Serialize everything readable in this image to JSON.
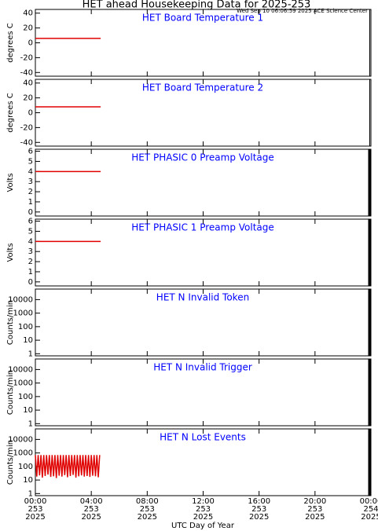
{
  "title": "HET ahead Housekeeping Data for 2025-253",
  "subtitle": "Wed Sep 10 06:06:59 2025 ACE Science Center",
  "x_axis": {
    "xlabel": "UTC Day of Year",
    "xlim": [
      0,
      24
    ],
    "xticks": [
      {
        "value": 0,
        "label": "00:00",
        "day": "253",
        "year": "2025"
      },
      {
        "value": 4,
        "label": "04:00",
        "day": "253",
        "year": "2025"
      },
      {
        "value": 8,
        "label": "08:00",
        "day": "253",
        "year": "2025"
      },
      {
        "value": 12,
        "label": "12:00",
        "day": "253",
        "year": "2025"
      },
      {
        "value": 16,
        "label": "16:00",
        "day": "253",
        "year": "2025"
      },
      {
        "value": 20,
        "label": "20:00",
        "day": "253",
        "year": "2025"
      },
      {
        "value": 24,
        "label": "00:00",
        "day": "254",
        "year": "2025"
      }
    ]
  },
  "chart_data": [
    {
      "type": "line",
      "title": "HET Board Temperature 1",
      "ylabel": "degrees C",
      "ylim": [
        -45,
        45
      ],
      "yticks": [
        -40,
        -20,
        0,
        20,
        40
      ],
      "series": [
        {
          "color": "#e00000",
          "x": [
            0,
            4.67
          ],
          "values": [
            6,
            6
          ]
        }
      ]
    },
    {
      "type": "line",
      "title": "HET Board Temperature 2",
      "ylabel": "degrees C",
      "ylim": [
        -45,
        45
      ],
      "yticks": [
        -40,
        -20,
        0,
        20,
        40
      ],
      "series": [
        {
          "color": "#e00000",
          "x": [
            0,
            4.67
          ],
          "values": [
            8,
            8
          ]
        }
      ]
    },
    {
      "type": "line",
      "title": "HET PHASIC 0 Preamp Voltage",
      "ylabel": "Volts",
      "ylim": [
        -0.4,
        6.2
      ],
      "yticks": [
        0,
        1,
        2,
        3,
        4,
        5,
        6
      ],
      "series": [
        {
          "color": "#e00000",
          "x": [
            0,
            4.67
          ],
          "values": [
            4,
            4
          ]
        }
      ]
    },
    {
      "type": "line",
      "title": "HET PHASIC 1 Preamp Voltage",
      "ylabel": "Volts",
      "ylim": [
        -0.4,
        6.2
      ],
      "yticks": [
        0,
        1,
        2,
        3,
        4,
        5,
        6
      ],
      "series": [
        {
          "color": "#e00000",
          "x": [
            0,
            4.67
          ],
          "values": [
            4,
            4
          ]
        }
      ]
    },
    {
      "type": "line",
      "title": "HET N Invalid Token",
      "ylabel": "Counts/min",
      "yscale": "log",
      "ylim": [
        0.7,
        60000
      ],
      "yticks": [
        1,
        10,
        100,
        1000,
        10000
      ],
      "series": []
    },
    {
      "type": "line",
      "title": "HET N Invalid Trigger",
      "ylabel": "Counts/min",
      "yscale": "log",
      "ylim": [
        0.7,
        60000
      ],
      "yticks": [
        1,
        10,
        100,
        1000,
        10000
      ],
      "series": []
    },
    {
      "type": "line",
      "title": "HET N Lost Events",
      "ylabel": "Counts/min",
      "yscale": "log",
      "ylim": [
        0.7,
        60000
      ],
      "yticks": [
        1,
        10,
        100,
        1000,
        10000
      ],
      "series": [
        {
          "color": "#e00000",
          "x": [
            0,
            0.1,
            0.2,
            0.3,
            0.4,
            0.5,
            0.6,
            0.7,
            0.8,
            0.9,
            1,
            1.1,
            1.2,
            1.3,
            1.4,
            1.5,
            1.6,
            1.7,
            1.8,
            1.9,
            2,
            2.1,
            2.2,
            2.3,
            2.4,
            2.5,
            2.6,
            2.7,
            2.8,
            2.9,
            3,
            3.1,
            3.2,
            3.3,
            3.4,
            3.5,
            3.6,
            3.7,
            3.8,
            3.9,
            4,
            4.1,
            4.2,
            4.3,
            4.4,
            4.5,
            4.6
          ],
          "values": [
            700,
            18,
            700,
            22,
            700,
            15,
            700,
            20,
            700,
            25,
            700,
            17,
            700,
            19,
            700,
            14,
            700,
            21,
            700,
            18,
            700,
            23,
            700,
            16,
            700,
            20,
            700,
            24,
            700,
            15,
            700,
            19,
            700,
            22,
            700,
            18,
            700,
            20,
            700,
            17,
            700,
            21,
            700,
            19,
            700,
            16,
            700
          ]
        }
      ]
    }
  ]
}
